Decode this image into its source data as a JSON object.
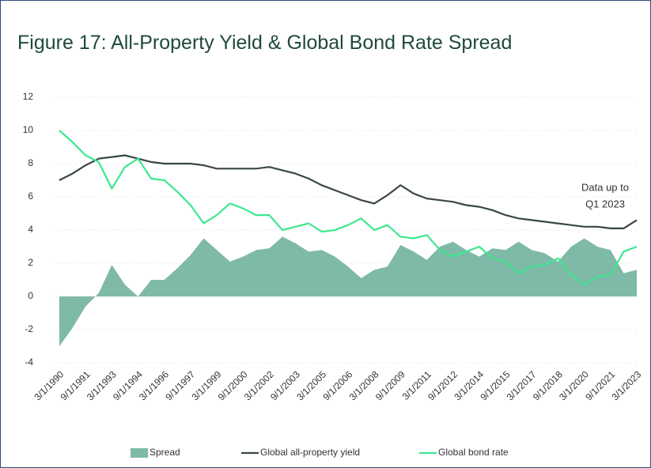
{
  "chart_data": {
    "type": "line",
    "title": "Figure 17: All-Property Yield & Global Bond Rate Spread",
    "annotation": [
      "Data up to",
      "Q1 2023"
    ],
    "categories": [
      "3/1/1990",
      null,
      "9/1/1991",
      null,
      "3/1/1993",
      null,
      "9/1/1994",
      null,
      "3/1/1996",
      null,
      "9/1/1997",
      null,
      "3/1/1999",
      null,
      "9/1/2000",
      null,
      "3/1/2002",
      null,
      "9/1/2003",
      null,
      "3/1/2005",
      null,
      "9/1/2006",
      null,
      "3/1/2008",
      null,
      "9/1/2009",
      null,
      "3/1/2011",
      null,
      "9/1/2012",
      null,
      "3/1/2014",
      null,
      "9/1/2015",
      null,
      "3/1/2017",
      null,
      "9/1/2018",
      null,
      "3/1/2020",
      null,
      "9/1/2021",
      null,
      "3/1/2023"
    ],
    "series": [
      {
        "name": "Spread",
        "style": "area",
        "color": "#7fb9a7",
        "values": [
          -3.0,
          -1.9,
          -0.6,
          0.2,
          1.9,
          0.7,
          0.0,
          1.0,
          1.0,
          1.7,
          2.5,
          3.5,
          2.8,
          2.1,
          2.4,
          2.8,
          2.9,
          3.6,
          3.2,
          2.7,
          2.8,
          2.4,
          1.8,
          1.1,
          1.6,
          1.8,
          3.1,
          2.7,
          2.2,
          3.0,
          3.3,
          2.8,
          2.4,
          2.9,
          2.8,
          3.3,
          2.8,
          2.6,
          2.1,
          3.0,
          3.5,
          3.0,
          2.8,
          1.4,
          1.6
        ]
      },
      {
        "name": "Global all-property yield",
        "style": "line",
        "color": "#3a4747",
        "values": [
          7.0,
          7.4,
          7.9,
          8.3,
          8.4,
          8.5,
          8.3,
          8.1,
          8.0,
          8.0,
          8.0,
          7.9,
          7.7,
          7.7,
          7.7,
          7.7,
          7.8,
          7.6,
          7.4,
          7.1,
          6.7,
          6.4,
          6.1,
          5.8,
          5.6,
          6.1,
          6.7,
          6.2,
          5.9,
          5.8,
          5.7,
          5.5,
          5.4,
          5.2,
          4.9,
          4.7,
          4.6,
          4.5,
          4.4,
          4.3,
          4.2,
          4.2,
          4.1,
          4.1,
          4.6
        ]
      },
      {
        "name": "Global bond rate",
        "style": "line",
        "color": "#3de88f",
        "values": [
          10.0,
          9.3,
          8.5,
          8.1,
          6.5,
          7.8,
          8.3,
          7.1,
          7.0,
          6.3,
          5.5,
          4.4,
          4.9,
          5.6,
          5.3,
          4.9,
          4.9,
          4.0,
          4.2,
          4.4,
          3.9,
          4.0,
          4.3,
          4.7,
          4.0,
          4.3,
          3.6,
          3.5,
          3.7,
          2.8,
          2.4,
          2.7,
          3.0,
          2.3,
          2.1,
          1.4,
          1.8,
          1.9,
          2.3,
          1.3,
          0.7,
          1.2,
          1.3,
          2.7,
          3.0
        ]
      }
    ],
    "ylim": [
      -4,
      12
    ],
    "yticks": [
      -4,
      -2,
      0,
      2,
      4,
      6,
      8,
      10,
      12
    ],
    "grid": true,
    "legend": "bottom"
  }
}
